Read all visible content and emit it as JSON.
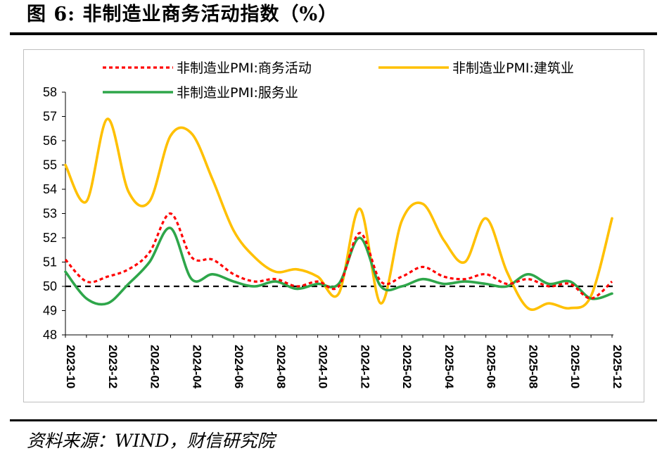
{
  "page": {
    "title": "图 6:  非制造业商务活动指数（%）",
    "source": "资料来源：WIND，财信研究院"
  },
  "chart_data": {
    "type": "line",
    "title": "",
    "xlabel": "",
    "ylabel": "",
    "ylim": [
      48,
      58
    ],
    "yticks": [
      48,
      49,
      50,
      51,
      52,
      53,
      54,
      55,
      56,
      57,
      58
    ],
    "reference_line": 50,
    "grid": false,
    "legend_position": "top",
    "x": [
      "2023-10",
      "2023-11",
      "2023-12",
      "2024-01",
      "2024-02",
      "2024-03",
      "2024-04",
      "2024-05",
      "2024-06",
      "2024-07",
      "2024-08",
      "2024-09",
      "2024-10",
      "2024-11",
      "2024-12",
      "2025-01",
      "2025-02",
      "2025-03",
      "2025-04",
      "2025-05",
      "2025-06",
      "2025-07",
      "2025-08",
      "2025-09",
      "2025-10",
      "2025-11",
      "2025-12"
    ],
    "xtick_labels": [
      "2023-10",
      "2023-12",
      "2024-02",
      "2024-04",
      "2024-06",
      "2024-08",
      "2024-10",
      "2024-12",
      "2025-02",
      "2025-04",
      "2025-06",
      "2025-08",
      "2025-10",
      "2025-12"
    ],
    "series": [
      {
        "name": "非制造业PMI:商务活动",
        "color": "#ff0000",
        "dash": true,
        "values": [
          51.1,
          50.2,
          50.4,
          50.7,
          51.4,
          53.0,
          51.2,
          51.1,
          50.5,
          50.2,
          50.3,
          50.0,
          50.2,
          50.0,
          52.2,
          50.2,
          50.4,
          50.8,
          50.4,
          50.3,
          50.5,
          50.1,
          50.3,
          50.0,
          50.1,
          49.5,
          50.2
        ]
      },
      {
        "name": "非制造业PMI:建筑业",
        "color": "#ffc000",
        "dash": false,
        "values": [
          55.0,
          53.5,
          56.9,
          53.9,
          53.5,
          56.2,
          56.3,
          54.4,
          52.3,
          51.2,
          50.6,
          50.7,
          50.4,
          49.7,
          53.2,
          49.3,
          52.7,
          53.4,
          51.9,
          51.0,
          52.8,
          50.6,
          49.1,
          49.3,
          49.1,
          49.6,
          52.8
        ]
      },
      {
        "name": "非制造业PMI:服务业",
        "color": "#2ea64a",
        "dash": false,
        "values": [
          50.6,
          49.5,
          49.3,
          50.1,
          51.0,
          52.4,
          50.3,
          50.5,
          50.2,
          50.0,
          50.2,
          49.9,
          50.1,
          50.1,
          52.0,
          50.0,
          50.0,
          50.3,
          50.1,
          50.2,
          50.1,
          50.0,
          50.5,
          50.1,
          50.2,
          49.5,
          49.7
        ]
      }
    ]
  }
}
